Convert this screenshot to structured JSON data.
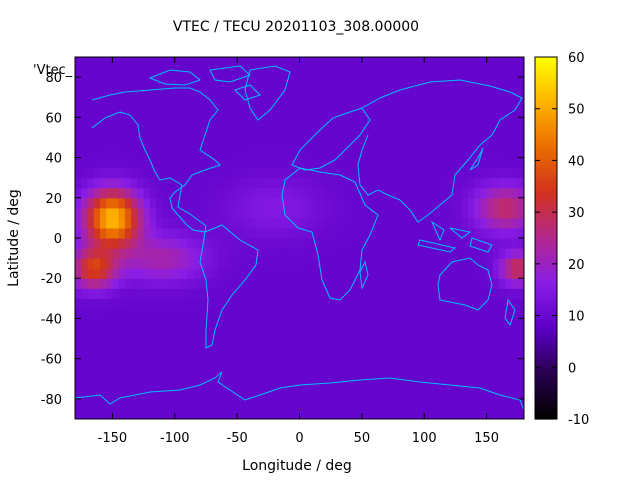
{
  "chart_data": {
    "type": "heatmap",
    "title": "VTEC / TECU 20201103_308.00000",
    "xlabel": "Longitude / deg",
    "ylabel": "Latitude / deg",
    "corner_label": "'Vtec_",
    "xlim": [
      -180,
      180
    ],
    "ylim": [
      -90,
      90
    ],
    "xticks": [
      -150,
      -100,
      -50,
      0,
      50,
      100,
      150
    ],
    "yticks": [
      -80,
      -60,
      -40,
      -20,
      0,
      20,
      40,
      60,
      80
    ],
    "colorbar": {
      "min": -10,
      "max": 60,
      "ticks": [
        -10,
        0,
        10,
        20,
        30,
        40,
        50,
        60
      ],
      "palette": [
        "#000000",
        "#2a0050",
        "#5d00c8",
        "#8a1ee6",
        "#b4288c",
        "#d2321e",
        "#eb6e00",
        "#ffb400",
        "#ffff00"
      ]
    },
    "field": {
      "background": 9,
      "hotspots": [
        {
          "lon": -150,
          "lat": 10,
          "value": 52,
          "spread_lon": 22,
          "spread_lat": 14
        },
        {
          "lon": -165,
          "lat": -15,
          "value": 35,
          "spread_lon": 18,
          "spread_lat": 10
        },
        {
          "lon": -110,
          "lat": -10,
          "value": 22,
          "spread_lon": 35,
          "spread_lat": 12
        },
        {
          "lon": 165,
          "lat": 15,
          "value": 28,
          "spread_lon": 25,
          "spread_lat": 12
        },
        {
          "lon": 175,
          "lat": -15,
          "value": 30,
          "spread_lon": 15,
          "spread_lat": 8
        },
        {
          "lon": -20,
          "lat": 15,
          "value": 15,
          "spread_lon": 40,
          "spread_lat": 15
        }
      ]
    },
    "coastline_color": "#00bfff"
  }
}
